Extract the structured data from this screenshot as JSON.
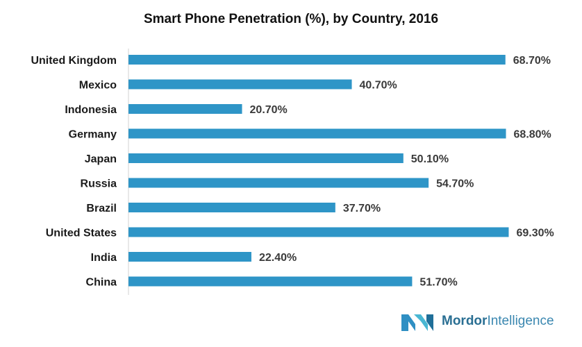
{
  "chart_data": {
    "type": "bar",
    "orientation": "horizontal",
    "title": "Smart Phone Penetration (%),  by Country, 2016",
    "categories": [
      "United Kingdom",
      "Mexico",
      "Indonesia",
      "Germany",
      "Japan",
      "Russia",
      "Brazil",
      "United States",
      "India",
      "China"
    ],
    "values": [
      68.7,
      40.7,
      20.7,
      68.8,
      50.1,
      54.7,
      37.7,
      69.3,
      22.4,
      51.7
    ],
    "value_labels": [
      "68.70%",
      "40.70%",
      "20.70%",
      "68.80%",
      "50.10%",
      "54.70%",
      "37.70%",
      "69.30%",
      "22.40%",
      "51.70%"
    ],
    "xlabel": "",
    "ylabel": "",
    "xlim": [
      0,
      70
    ],
    "grid": false,
    "legend": "none",
    "bar_color": "#2e95c7"
  },
  "brand": {
    "name_part1": "Mordor",
    "name_part2": "Intelligence",
    "logo_icon": "mordor-logo-icon"
  }
}
